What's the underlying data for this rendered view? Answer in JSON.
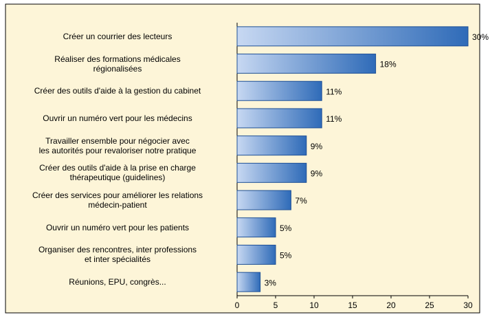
{
  "chart_data": {
    "type": "barh",
    "categories": [
      "Créer un courrier des lecteurs",
      "Réaliser des formations médicales\nrégionalisées",
      "Créer des outils d'aide à la gestion du cabinet",
      "Ouvrir un numéro vert pour les médecins",
      "Travailler ensemble pour négocier avec\nles autorités pour revaloriser notre pratique",
      "Créer des outils d'aide à la prise en charge\nthérapeutique (guidelines)",
      "Créer des services pour améliorer les relations\nmédecin-patient",
      "Ouvrir un numéro vert pour les patients",
      "Organiser des rencontres, inter professions\net inter spécialités",
      "Réunions, EPU, congrès..."
    ],
    "values": [
      30,
      18,
      11,
      11,
      9,
      9,
      7,
      5,
      5,
      3
    ],
    "value_labels": [
      "30%",
      "18%",
      "11%",
      "11%",
      "9%",
      "9%",
      "7%",
      "5%",
      "5%",
      "3%"
    ],
    "color": "#2f6bb8",
    "xlim": [
      0,
      30
    ],
    "xticks": [
      0,
      5,
      10,
      15,
      20,
      25,
      30
    ]
  }
}
